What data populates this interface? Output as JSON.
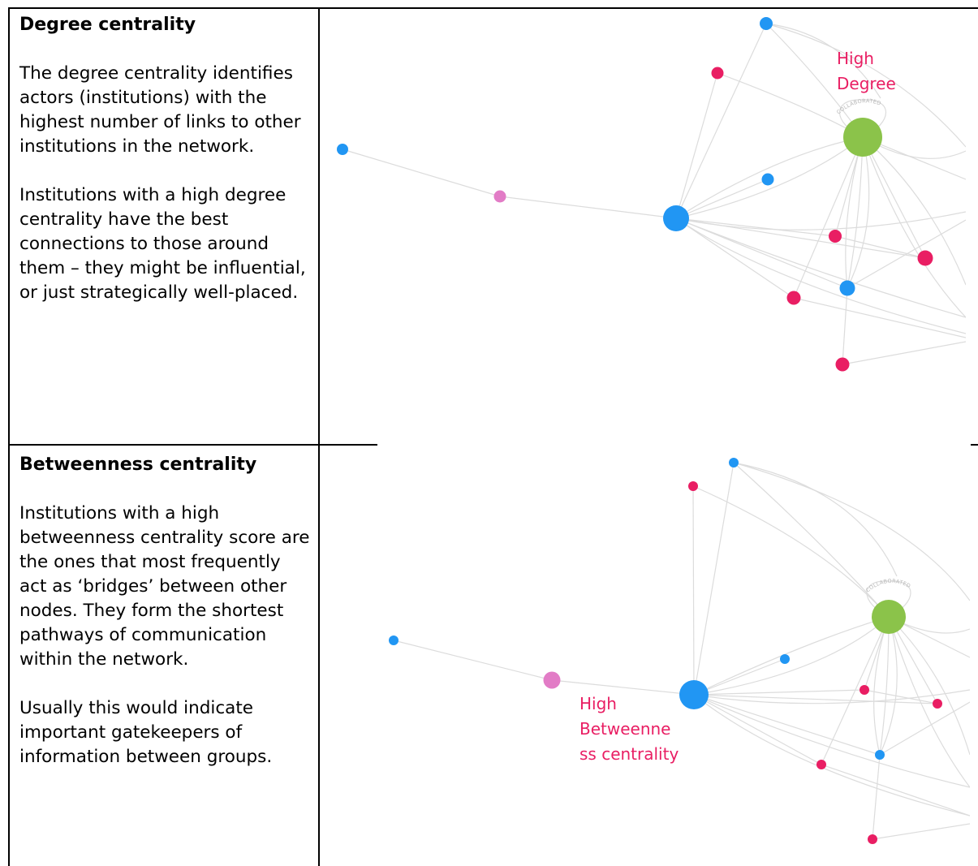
{
  "colors": {
    "blue": "#2196f3",
    "crimson": "#e91e63",
    "pink": "#e27cc6",
    "green": "#8bc34a",
    "edge": "#dcdcdc",
    "annotation": "#e91e63"
  },
  "rows": [
    {
      "title": "Degree centrality",
      "paragraphs": [
        "The degree centrality identifies actors (institutions) with the highest number of links to other institutions in the network.",
        "Institutions with a high degree centrality have the best connections to those around them – they might be influential, or just strategically well-placed."
      ],
      "annotation_lines": [
        "High",
        "Degree"
      ],
      "edge_label": "COLLABORATED"
    },
    {
      "title": "Betweenness centrality",
      "paragraphs": [
        "Institutions with a high betweenness centrality score are the ones that most frequently act as ‘bridges’ between other nodes. They form the shortest pathways of communication within the network.",
        "Usually this would indicate important gatekeepers of information between groups."
      ],
      "annotation_lines": [
        "High",
        "Betweenne",
        "ss centrality"
      ],
      "edge_label": "COLLABORATED"
    }
  ]
}
